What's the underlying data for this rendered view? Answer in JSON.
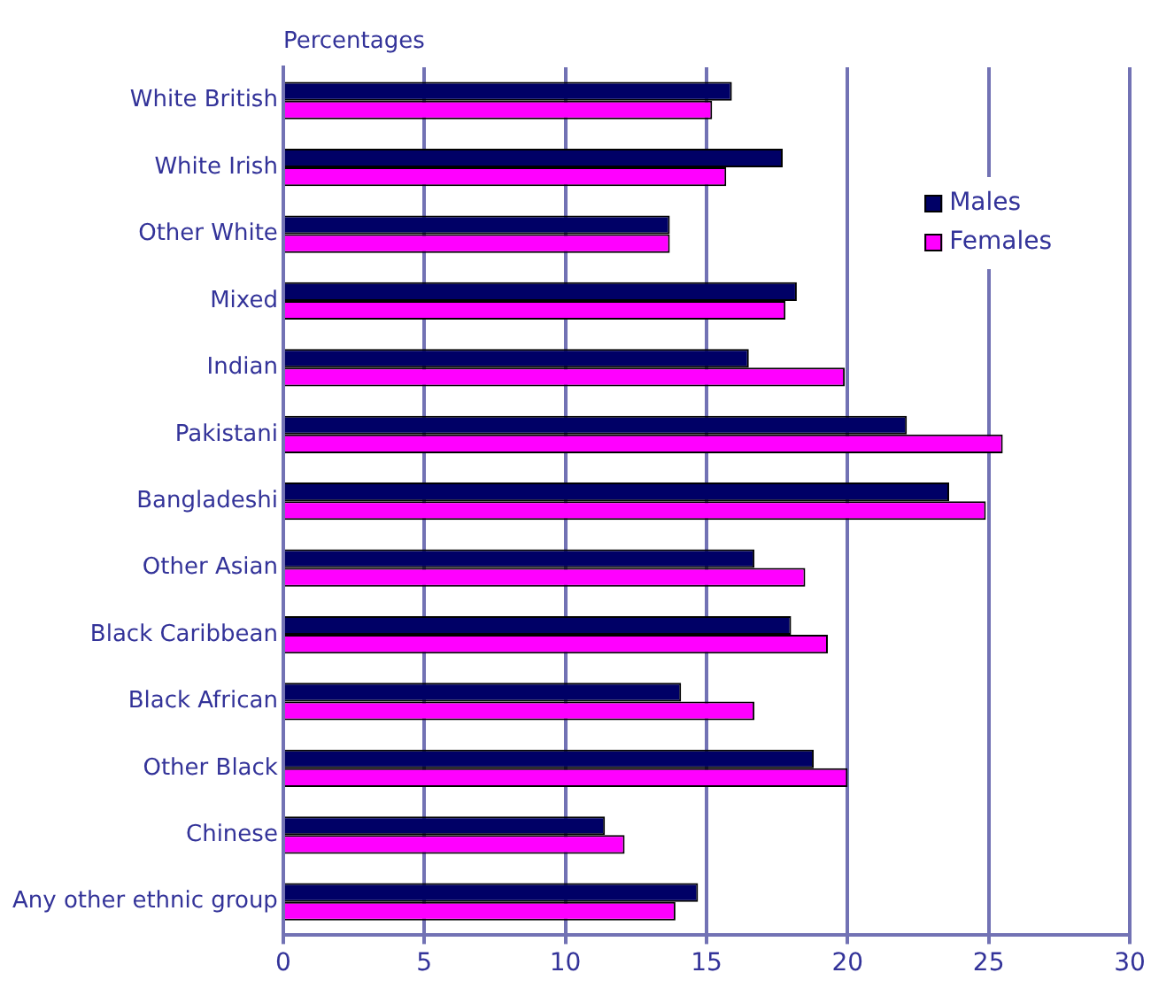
{
  "chart_data": {
    "type": "bar",
    "orientation": "horizontal",
    "title": "Percentages",
    "categories": [
      "White British",
      "White Irish",
      "Other White",
      "Mixed",
      "Indian",
      "Pakistani",
      "Bangladeshi",
      "Other Asian",
      "Black Caribbean",
      "Black African",
      "Other Black",
      "Chinese",
      "Any other ethnic group"
    ],
    "series": [
      {
        "name": "Males",
        "color": "#000066",
        "values": [
          15.9,
          17.7,
          13.7,
          18.2,
          16.5,
          22.1,
          23.6,
          16.7,
          18.0,
          14.1,
          18.8,
          11.4,
          14.7
        ]
      },
      {
        "name": "Females",
        "color": "#ff00ff",
        "values": [
          15.2,
          15.7,
          13.7,
          17.8,
          19.9,
          25.5,
          24.9,
          18.5,
          19.3,
          16.7,
          20.0,
          12.1,
          13.9
        ]
      }
    ],
    "xlim": [
      0,
      30
    ],
    "xticks": [
      0,
      5,
      10,
      15,
      20,
      25,
      30
    ],
    "grid": "x",
    "legend": "top right"
  }
}
